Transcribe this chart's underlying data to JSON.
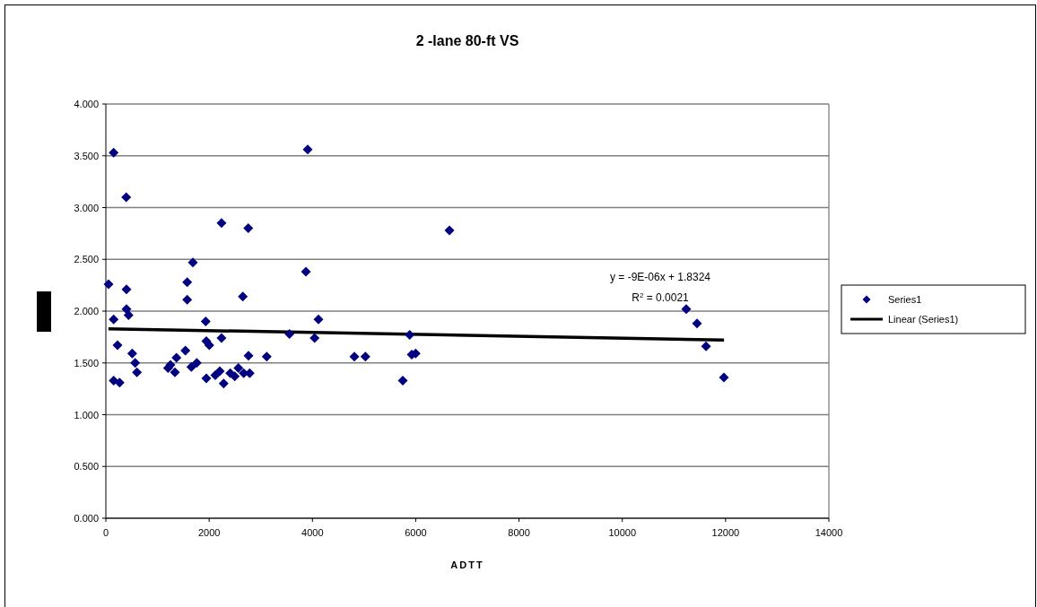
{
  "chart_data": {
    "type": "scatter",
    "title": "2 -lane 80-ft VS",
    "xlabel": "ADTT",
    "xlim": [
      0,
      14000
    ],
    "xticks": [
      0,
      2000,
      4000,
      6000,
      8000,
      10000,
      12000,
      14000
    ],
    "ylim": [
      0,
      4
    ],
    "yticks": [
      {
        "value": 0,
        "label": "0.000"
      },
      {
        "value": 0.5,
        "label": "0.500"
      },
      {
        "value": 1,
        "label": "1.000"
      },
      {
        "value": 1.5,
        "label": "1.500"
      },
      {
        "value": 2,
        "label": "2.000"
      },
      {
        "value": 2.5,
        "label": "2.500"
      },
      {
        "value": 3,
        "label": "3.000"
      },
      {
        "value": 3.5,
        "label": "3.500"
      },
      {
        "value": 4,
        "label": "4.000"
      }
    ],
    "grid": "y",
    "legend": "right",
    "annotations": [
      "y = -9E-06x + 1.8324",
      "R$^{2}$ = 0.0021"
    ],
    "series": [
      {
        "name": "Series1",
        "marker": "diamond",
        "color": "#000080",
        "x": [
          151,
          394,
          52,
          400,
          400,
          440,
          151,
          226,
          510,
          568,
          602,
          151,
          266,
          1685,
          1575,
          1575,
          1933,
          1945,
          2003,
          2240,
          2240,
          2757,
          2652,
          2762,
          3115,
          3555,
          3874,
          3908,
          4042,
          4117,
          1540,
          1367,
          1251,
          1204,
          1338,
          1656,
          1760,
          1945,
          2119,
          2206,
          2281,
          2409,
          2496,
          2566,
          2670,
          2785,
          6653,
          4812,
          5025,
          5883,
          5923,
          5998,
          5749,
          11238,
          11447,
          11621,
          11968
        ],
        "values": [
          3.53,
          3.1,
          2.26,
          2.21,
          2.02,
          1.96,
          1.92,
          1.67,
          1.59,
          1.5,
          1.41,
          1.33,
          1.31,
          2.47,
          2.28,
          2.11,
          1.9,
          1.71,
          1.67,
          2.85,
          1.74,
          2.8,
          2.14,
          1.57,
          1.56,
          1.78,
          2.38,
          3.56,
          1.74,
          1.92,
          1.62,
          1.55,
          1.48,
          1.45,
          1.41,
          1.46,
          1.5,
          1.35,
          1.38,
          1.42,
          1.3,
          1.4,
          1.37,
          1.45,
          1.4,
          1.4,
          2.78,
          1.56,
          1.56,
          1.77,
          1.58,
          1.59,
          1.33,
          2.02,
          1.88,
          1.66,
          1.36
        ]
      },
      {
        "name": "Linear (Series1)",
        "type": "line",
        "marker": "none",
        "line_style": "solid",
        "color": "#000000",
        "x": [
          50,
          11970
        ],
        "values": [
          1.83,
          1.72
        ]
      }
    ]
  }
}
